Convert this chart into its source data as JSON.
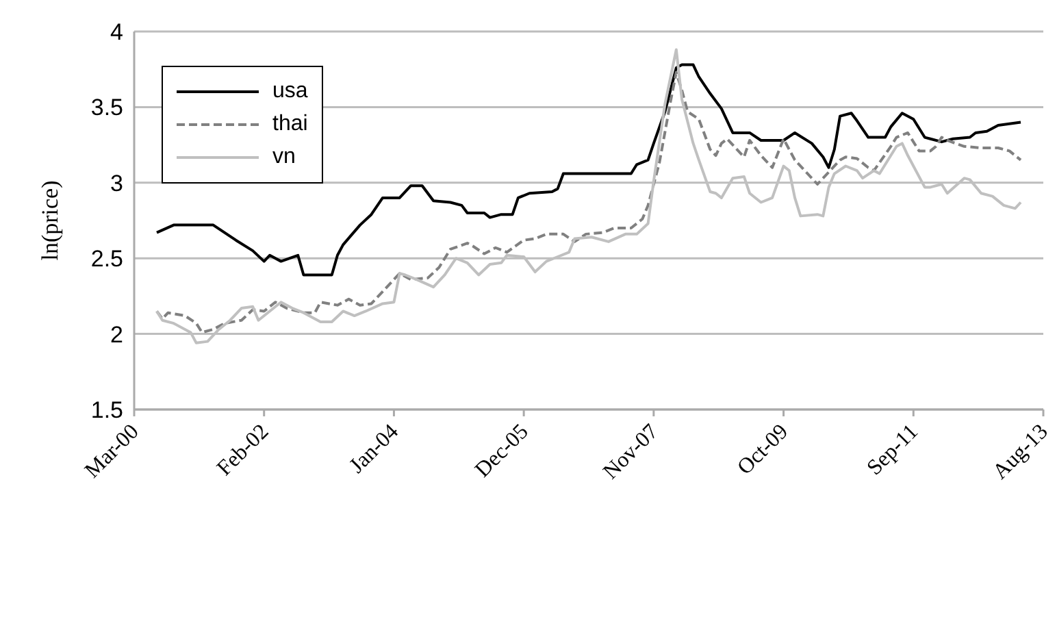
{
  "chart_data": {
    "type": "line",
    "ylabel": "ln(price)",
    "xlim": [
      "2000-03",
      "2013-08"
    ],
    "xticks": [
      {
        "value": "2000-03",
        "label": "Mar-00"
      },
      {
        "value": "2002-02",
        "label": "Feb-02"
      },
      {
        "value": "2004-01",
        "label": "Jan-04"
      },
      {
        "value": "2005-12",
        "label": "Dec-05"
      },
      {
        "value": "2007-11",
        "label": "Nov-07"
      },
      {
        "value": "2009-10",
        "label": "Oct-09"
      },
      {
        "value": "2011-09",
        "label": "Sep-11"
      },
      {
        "value": "2013-08",
        "label": "Aug-13"
      }
    ],
    "ylim": [
      1.5,
      4
    ],
    "yticks": [
      1.5,
      2,
      2.5,
      3,
      3.5,
      4
    ],
    "grid": "y",
    "legend": "top left",
    "marker": "none",
    "series": [
      {
        "name": "usa",
        "color": "#000000",
        "line_style": "solid",
        "x": [
          "2000-07",
          "2000-10",
          "2001-05",
          "2001-09",
          "2001-12",
          "2002-02",
          "2002-03",
          "2002-05",
          "2002-08",
          "2002-09",
          "2003-02",
          "2003-03",
          "2003-04",
          "2003-07",
          "2003-09",
          "2003-11",
          "2004-02",
          "2004-04",
          "2004-06",
          "2004-08",
          "2004-11",
          "2005-01",
          "2005-02",
          "2005-05",
          "2005-06",
          "2005-08",
          "2005-10",
          "2005-11",
          "2006-01",
          "2006-05",
          "2006-06",
          "2006-07",
          "2007-07",
          "2007-08",
          "2007-10",
          "2007-11",
          "2008-01",
          "2008-03",
          "2008-04",
          "2008-06",
          "2008-07",
          "2008-09",
          "2008-11",
          "2009-01",
          "2009-04",
          "2009-06",
          "2009-10",
          "2009-12",
          "2010-03",
          "2010-05",
          "2010-06",
          "2010-07",
          "2010-08",
          "2010-10",
          "2010-11",
          "2011-01",
          "2011-04",
          "2011-05",
          "2011-07",
          "2011-09",
          "2011-11",
          "2011-12",
          "2012-02",
          "2012-04",
          "2012-07",
          "2012-08",
          "2012-10",
          "2012-12",
          "2013-04"
        ],
        "values": [
          2.67,
          2.72,
          2.72,
          2.62,
          2.55,
          2.48,
          2.52,
          2.48,
          2.52,
          2.39,
          2.39,
          2.52,
          2.59,
          2.72,
          2.79,
          2.9,
          2.9,
          2.98,
          2.98,
          2.88,
          2.87,
          2.85,
          2.8,
          2.8,
          2.77,
          2.79,
          2.79,
          2.9,
          2.93,
          2.94,
          2.96,
          3.06,
          3.06,
          3.12,
          3.15,
          3.26,
          3.47,
          3.76,
          3.78,
          3.78,
          3.7,
          3.59,
          3.49,
          3.33,
          3.33,
          3.28,
          3.28,
          3.33,
          3.26,
          3.17,
          3.1,
          3.22,
          3.44,
          3.46,
          3.41,
          3.3,
          3.3,
          3.37,
          3.46,
          3.42,
          3.3,
          3.29,
          3.27,
          3.29,
          3.3,
          3.33,
          3.34,
          3.38,
          3.4
        ]
      },
      {
        "name": "thai",
        "color": "#808080",
        "line_style": "dashed",
        "x": [
          "2000-07",
          "2000-08",
          "2000-09",
          "2000-12",
          "2001-02",
          "2001-03",
          "2001-05",
          "2001-07",
          "2001-10",
          "2001-12",
          "2002-02",
          "2002-04",
          "2002-06",
          "2002-09",
          "2002-11",
          "2002-12",
          "2003-03",
          "2003-05",
          "2003-07",
          "2003-09",
          "2003-11",
          "2004-02",
          "2004-04",
          "2004-07",
          "2004-09",
          "2004-11",
          "2005-02",
          "2005-03",
          "2005-05",
          "2005-07",
          "2005-09",
          "2005-12",
          "2006-02",
          "2006-04",
          "2006-07",
          "2006-09",
          "2006-11",
          "2007-02",
          "2007-04",
          "2007-07",
          "2007-09",
          "2007-10",
          "2007-12",
          "2008-02",
          "2008-03",
          "2008-04",
          "2008-05",
          "2008-07",
          "2008-09",
          "2008-10",
          "2008-11",
          "2008-12",
          "2009-03",
          "2009-04",
          "2009-06",
          "2009-08",
          "2009-10",
          "2009-12",
          "2010-04",
          "2010-05",
          "2010-08",
          "2010-09",
          "2010-11",
          "2011-01",
          "2011-02",
          "2011-05",
          "2011-06",
          "2011-08",
          "2011-10",
          "2011-12",
          "2012-01",
          "2012-02",
          "2012-03",
          "2012-06",
          "2012-09",
          "2012-12",
          "2013-02",
          "2013-04"
        ],
        "values": [
          2.15,
          2.1,
          2.14,
          2.12,
          2.07,
          2.01,
          2.03,
          2.07,
          2.09,
          2.16,
          2.15,
          2.21,
          2.17,
          2.14,
          2.14,
          2.21,
          2.19,
          2.23,
          2.19,
          2.2,
          2.28,
          2.4,
          2.36,
          2.37,
          2.44,
          2.56,
          2.6,
          2.58,
          2.53,
          2.57,
          2.54,
          2.62,
          2.63,
          2.66,
          2.66,
          2.61,
          2.66,
          2.67,
          2.7,
          2.7,
          2.76,
          2.85,
          3.13,
          3.54,
          3.73,
          3.61,
          3.47,
          3.42,
          3.22,
          3.18,
          3.26,
          3.29,
          3.17,
          3.28,
          3.18,
          3.1,
          3.29,
          3.15,
          2.99,
          3.03,
          3.15,
          3.17,
          3.16,
          3.1,
          3.08,
          3.24,
          3.3,
          3.33,
          3.21,
          3.21,
          3.24,
          3.3,
          3.28,
          3.24,
          3.23,
          3.23,
          3.21,
          3.15
        ]
      },
      {
        "name": "vn",
        "color": "#c0c0c0",
        "line_style": "solid",
        "x": [
          "2000-07",
          "2000-08",
          "2000-10",
          "2001-01",
          "2001-02",
          "2001-04",
          "2001-06",
          "2001-08",
          "2001-10",
          "2001-12",
          "2002-01",
          "2002-03",
          "2002-05",
          "2002-07",
          "2002-09",
          "2002-12",
          "2003-02",
          "2003-04",
          "2003-06",
          "2003-08",
          "2003-11",
          "2004-01",
          "2004-02",
          "2004-03",
          "2004-05",
          "2004-08",
          "2004-10",
          "2004-12",
          "2005-02",
          "2005-04",
          "2005-06",
          "2005-08",
          "2005-09",
          "2005-12",
          "2006-02",
          "2006-04",
          "2006-06",
          "2006-08",
          "2006-09",
          "2006-12",
          "2007-03",
          "2007-06",
          "2007-08",
          "2007-10",
          "2007-11",
          "2008-01",
          "2008-03",
          "2008-04",
          "2008-06",
          "2008-07",
          "2008-09",
          "2008-10",
          "2008-11",
          "2009-01",
          "2009-03",
          "2009-04",
          "2009-06",
          "2009-08",
          "2009-10",
          "2009-11",
          "2009-12",
          "2010-01",
          "2010-04",
          "2010-05",
          "2010-06",
          "2010-07",
          "2010-09",
          "2010-11",
          "2010-12",
          "2011-02",
          "2011-03",
          "2011-06",
          "2011-07",
          "2011-08",
          "2011-11",
          "2011-12",
          "2012-02",
          "2012-03",
          "2012-06",
          "2012-07",
          "2012-09",
          "2012-11",
          "2013-01",
          "2013-03",
          "2013-04"
        ],
        "values": [
          2.15,
          2.09,
          2.07,
          2.01,
          1.94,
          1.95,
          2.03,
          2.09,
          2.17,
          2.18,
          2.09,
          2.15,
          2.21,
          2.17,
          2.14,
          2.08,
          2.08,
          2.15,
          2.12,
          2.15,
          2.2,
          2.21,
          2.4,
          2.39,
          2.36,
          2.31,
          2.39,
          2.5,
          2.47,
          2.39,
          2.46,
          2.47,
          2.52,
          2.51,
          2.41,
          2.48,
          2.51,
          2.54,
          2.63,
          2.64,
          2.61,
          2.66,
          2.66,
          2.73,
          3.01,
          3.52,
          3.88,
          3.55,
          3.26,
          3.15,
          2.94,
          2.93,
          2.9,
          3.03,
          3.04,
          2.93,
          2.87,
          2.9,
          3.11,
          3.08,
          2.9,
          2.78,
          2.79,
          2.78,
          2.97,
          3.06,
          3.11,
          3.08,
          3.03,
          3.08,
          3.06,
          3.24,
          3.26,
          3.18,
          2.97,
          2.97,
          2.99,
          2.93,
          3.03,
          3.02,
          2.93,
          2.91,
          2.85,
          2.83,
          2.87
        ]
      }
    ]
  }
}
